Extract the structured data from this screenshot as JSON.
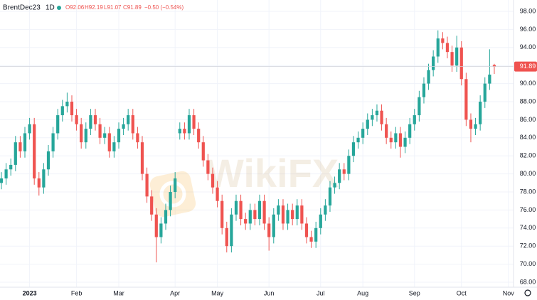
{
  "header": {
    "symbol": "BrentDec23",
    "interval": "1D",
    "open": "O92.06",
    "high": "H92.19",
    "low": "L91.07",
    "close": "C91.89",
    "change": "−0.50 (−0.54%)"
  },
  "watermark": "WikiFX",
  "chart_data": {
    "type": "candlestick",
    "categories": [
      null,
      null,
      null,
      null,
      null,
      null,
      "2023",
      null,
      null,
      null,
      null,
      null,
      null,
      null,
      null,
      null,
      "Feb",
      null,
      null,
      null,
      null,
      null,
      null,
      null,
      null,
      "Mar",
      null,
      null,
      null,
      null,
      null,
      null,
      null,
      null,
      null,
      null,
      null,
      "Apr",
      null,
      null,
      null,
      null,
      null,
      null,
      null,
      null,
      "May",
      null,
      null,
      null,
      null,
      null,
      null,
      null,
      null,
      null,
      null,
      "Jun",
      null,
      null,
      null,
      null,
      null,
      null,
      null,
      null,
      null,
      null,
      "Jul",
      null,
      null,
      null,
      null,
      null,
      null,
      null,
      null,
      "Aug",
      null,
      null,
      null,
      null,
      null,
      null,
      null,
      null,
      null,
      null,
      "Sep",
      null,
      null,
      null,
      null,
      null,
      null,
      null,
      null,
      null,
      "Oct",
      null,
      null,
      null,
      null,
      null,
      null,
      null,
      null,
      null,
      "Nov"
    ],
    "open": [
      79,
      79.5,
      80.5,
      81,
      83.5,
      82.5,
      84.5,
      85.5,
      79.5,
      78.5,
      80.5,
      82.5,
      84.5,
      86.5,
      87.5,
      88,
      86.5,
      85.5,
      83.5,
      85,
      86.5,
      85.5,
      84,
      84.5,
      82.5,
      83.5,
      85,
      85.5,
      86.5,
      84.5,
      83.5,
      80,
      77.5,
      75.5,
      73,
      74.5,
      76,
      78,
      84.5,
      85,
      84.5,
      86.5,
      85,
      83.5,
      81.5,
      80,
      78.5,
      77,
      74,
      72,
      75.5,
      77,
      75,
      74.5,
      76,
      75,
      77,
      74.5,
      73,
      75.5,
      76.5,
      74.5,
      76,
      75,
      76.5,
      74.5,
      73,
      72.5,
      74,
      75.5,
      76.5,
      78.5,
      79,
      80.5,
      80,
      82,
      83.5,
      84,
      85,
      86,
      86.5,
      87,
      85.5,
      84,
      83.5,
      84.5,
      83,
      84,
      85.5,
      86.5,
      88.5,
      90,
      91.5,
      93,
      95,
      94.5,
      93.5,
      92,
      94,
      90.5,
      86,
      85,
      85.5,
      88,
      90,
      92.06,
      null,
      null,
      null
    ],
    "high": [
      80.2,
      81.2,
      81.7,
      84.2,
      84.2,
      85.2,
      86.2,
      86.2,
      80.2,
      81.2,
      83.2,
      85.2,
      87.2,
      88.2,
      89,
      88.7,
      87.2,
      86.2,
      85.7,
      87.2,
      87.2,
      86.2,
      85.2,
      85.2,
      84.2,
      85.7,
      86.2,
      87.2,
      87.2,
      85.2,
      84.2,
      80.7,
      78.2,
      76.2,
      75.2,
      76.7,
      78.7,
      80.2,
      85.7,
      85.7,
      87.2,
      87.2,
      85.7,
      84.2,
      82.2,
      80.7,
      79.2,
      77.7,
      74.7,
      76.2,
      77.7,
      77.7,
      75.7,
      76.7,
      76.7,
      77.7,
      77.7,
      75.2,
      76.2,
      77.2,
      77.2,
      76.7,
      76.7,
      77.2,
      77.2,
      75.2,
      73.7,
      74.7,
      76.2,
      77.2,
      79.2,
      79.7,
      81.2,
      81.2,
      82.7,
      84.2,
      84.7,
      85.7,
      86.7,
      87.2,
      87.7,
      87.7,
      86.2,
      84.7,
      85.2,
      85.2,
      84.7,
      86.2,
      87.2,
      89.2,
      90.7,
      92.2,
      93.7,
      95.9,
      95.7,
      95.2,
      94.2,
      95.3,
      94.7,
      91.2,
      86.7,
      86.2,
      88.7,
      90.7,
      93.8,
      92.19,
      null,
      null,
      null
    ],
    "low": [
      78.3,
      78.8,
      79.8,
      80.3,
      81.8,
      81.8,
      83.8,
      78.8,
      77.6,
      77.8,
      79.8,
      81.8,
      83.8,
      85.8,
      86.8,
      85.8,
      84.8,
      82.8,
      82.8,
      84.3,
      84.8,
      83.3,
      83.3,
      81.8,
      81.8,
      82.8,
      84.3,
      84.8,
      83.8,
      82.8,
      79.3,
      76.8,
      74.8,
      70.2,
      72.3,
      73.8,
      75.3,
      77.3,
      83.8,
      83.8,
      83.8,
      84.3,
      82.8,
      80.8,
      79.3,
      77.8,
      76.3,
      73.3,
      71.3,
      71.3,
      74.8,
      74.3,
      73.8,
      73.8,
      74.3,
      74.3,
      73.8,
      71.5,
      72.3,
      74.8,
      73.8,
      73.8,
      74.3,
      74.3,
      73.8,
      72.3,
      71.8,
      71.8,
      73.3,
      74.8,
      75.8,
      77.8,
      78.3,
      79.3,
      79.3,
      81.3,
      82.8,
      83.3,
      84.3,
      85.3,
      85.8,
      84.8,
      83.3,
      82.8,
      82.8,
      81.8,
      82.3,
      83.3,
      84.8,
      85.8,
      87.8,
      89.3,
      90.8,
      92.3,
      93.8,
      92.8,
      91.3,
      91.3,
      89.8,
      85.3,
      83.5,
      84.3,
      84.8,
      87.3,
      89.3,
      91.07,
      null,
      null,
      null
    ],
    "close": [
      79.5,
      80.5,
      81,
      83.5,
      82.5,
      84.5,
      85.5,
      79.5,
      78.5,
      80.5,
      82.5,
      84.5,
      86.5,
      87.5,
      88,
      86.5,
      85.5,
      83.5,
      85,
      86.5,
      85.5,
      84,
      84.5,
      82.5,
      83.5,
      85,
      85.5,
      86.5,
      84.5,
      83.5,
      80,
      77.5,
      75.5,
      73,
      74.5,
      76,
      78,
      79.5,
      85,
      84.5,
      86.5,
      85,
      83.5,
      81.5,
      80,
      78.5,
      77,
      74,
      72,
      75.5,
      77,
      75,
      74.5,
      76,
      75,
      77,
      74.5,
      73,
      75.5,
      76.5,
      74.5,
      76,
      75,
      76.5,
      74.5,
      73,
      72.5,
      74,
      75.5,
      76.5,
      78.5,
      79,
      80.5,
      80,
      82,
      83.5,
      84,
      85,
      86,
      86.5,
      87,
      85.5,
      84,
      83.5,
      84.5,
      83,
      84,
      85.5,
      86.5,
      88.5,
      90,
      91.5,
      93,
      95,
      94.5,
      93.5,
      92,
      94,
      90.5,
      86,
      85,
      85.5,
      88,
      90,
      91,
      91.89,
      null,
      null,
      null
    ],
    "up_color": "#26a69a",
    "down_color": "#ef5350",
    "ylim": [
      67.45,
      99.26
    ],
    "yticks": [
      {
        "value": 68,
        "label": "68.00"
      },
      {
        "value": 70,
        "label": "70.00"
      },
      {
        "value": 72,
        "label": "72.00"
      },
      {
        "value": 74,
        "label": "74.00"
      },
      {
        "value": 76,
        "label": "76.00"
      },
      {
        "value": 78,
        "label": "78.00"
      },
      {
        "value": 80,
        "label": "80.00"
      },
      {
        "value": 82,
        "label": "82.00"
      },
      {
        "value": 84,
        "label": "84.00"
      },
      {
        "value": 86,
        "label": "86.00"
      },
      {
        "value": 88,
        "label": "88.00"
      },
      {
        "value": 90,
        "label": "90.00"
      },
      {
        "value": 92,
        "label": "92.00"
      },
      {
        "value": 94,
        "label": "94.00"
      },
      {
        "value": 96,
        "label": "96.00"
      },
      {
        "value": 98,
        "label": "98.00"
      }
    ],
    "last_price": 91.89,
    "grid": true
  }
}
